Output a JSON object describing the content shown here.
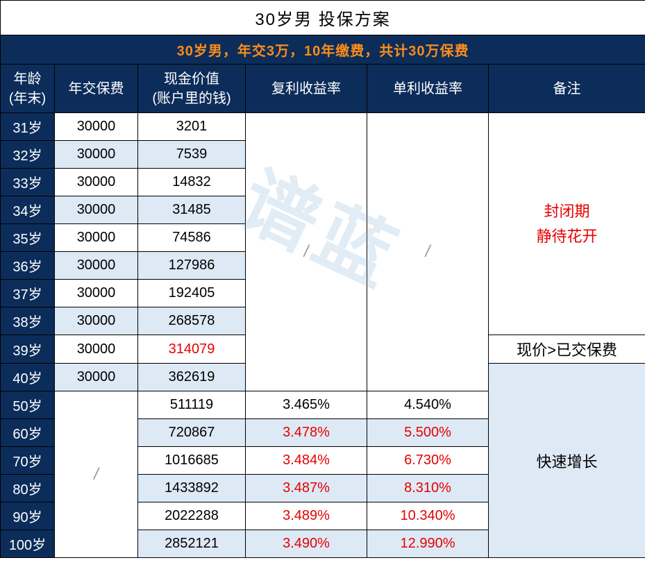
{
  "title": "30岁男 投保方案",
  "subtitle": "30岁男，年交3万，10年缴费，共计30万保费",
  "watermark": "谱蓝",
  "colors": {
    "header_bg": "#0c2d5a",
    "header_text": "#ffffff",
    "subtitle_text": "#ff8c1a",
    "row_alt_bg": "#dde9f5",
    "row_bg": "#ffffff",
    "red_text": "#e60000",
    "black_text": "#000000",
    "border": "#000000"
  },
  "fonts": {
    "title_size": 24,
    "header_size": 20,
    "cell_size": 20,
    "remarks_size": 22
  },
  "columns": {
    "age": "年龄\n(年末)",
    "premium": "年交保费",
    "cash_value": "现金价值\n(账户里的钱)",
    "compound_rate": "复利收益率",
    "simple_rate": "单利收益率",
    "remarks": "备注"
  },
  "remarks": {
    "closed_period": "封闭期\n静待花开",
    "threshold": "现价>已交保费",
    "growth": "快速增长"
  },
  "rows": [
    {
      "age": "31岁",
      "premium": "30000",
      "cash_value": "3201",
      "alt": false
    },
    {
      "age": "32岁",
      "premium": "30000",
      "cash_value": "7539",
      "alt": true
    },
    {
      "age": "33岁",
      "premium": "30000",
      "cash_value": "14832",
      "alt": false
    },
    {
      "age": "34岁",
      "premium": "30000",
      "cash_value": "31485",
      "alt": true
    },
    {
      "age": "35岁",
      "premium": "30000",
      "cash_value": "74586",
      "alt": false
    },
    {
      "age": "36岁",
      "premium": "30000",
      "cash_value": "127986",
      "alt": true
    },
    {
      "age": "37岁",
      "premium": "30000",
      "cash_value": "192405",
      "alt": false
    },
    {
      "age": "38岁",
      "premium": "30000",
      "cash_value": "268578",
      "alt": true
    },
    {
      "age": "39岁",
      "premium": "30000",
      "cash_value": "314079",
      "cash_red": true,
      "alt": false
    },
    {
      "age": "40岁",
      "premium": "30000",
      "cash_value": "362619",
      "alt": true
    },
    {
      "age": "50岁",
      "cash_value": "511119",
      "compound": "3.465%",
      "simple": "4.540%",
      "alt": false
    },
    {
      "age": "60岁",
      "cash_value": "720867",
      "compound": "3.478%",
      "simple": "5.500%",
      "rate_red": true,
      "alt": true
    },
    {
      "age": "70岁",
      "cash_value": "1016685",
      "compound": "3.484%",
      "simple": "6.730%",
      "rate_red": true,
      "alt": false
    },
    {
      "age": "80岁",
      "cash_value": "1433892",
      "compound": "3.487%",
      "simple": "8.310%",
      "rate_red": true,
      "alt": true
    },
    {
      "age": "90岁",
      "cash_value": "2022288",
      "compound": "3.489%",
      "simple": "10.340%",
      "rate_red": true,
      "alt": false
    },
    {
      "age": "100岁",
      "cash_value": "2852121",
      "compound": "3.490%",
      "simple": "12.990%",
      "rate_red": true,
      "alt": true
    }
  ]
}
